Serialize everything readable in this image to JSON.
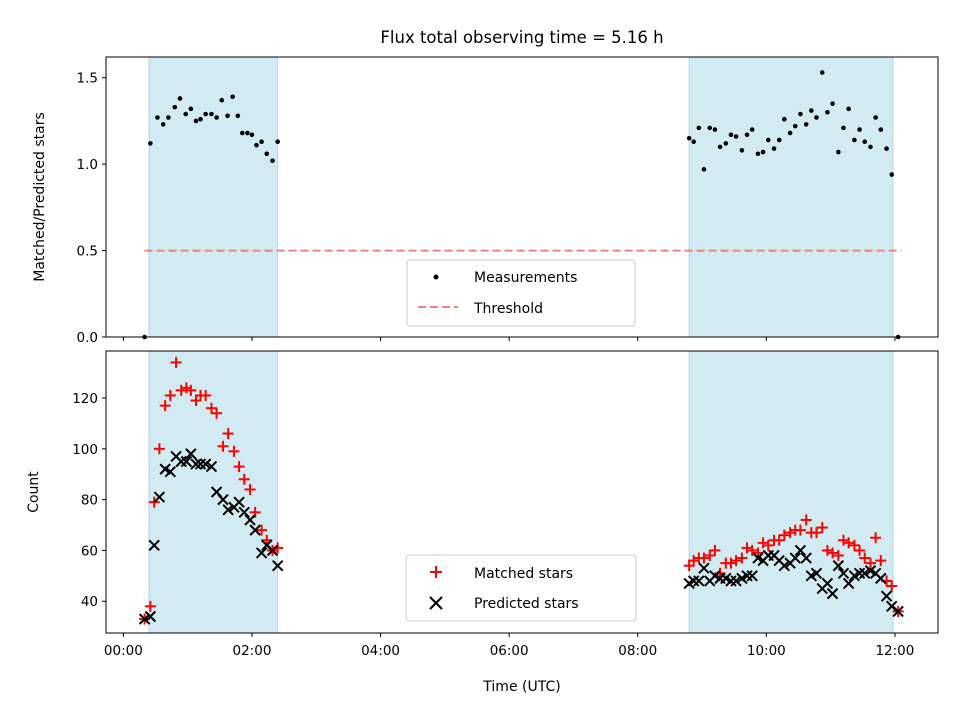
{
  "chart_data": [
    {
      "type": "scatter",
      "title": "Flux total observing time = 5.16 h",
      "xlabel": "",
      "ylabel": "Matched/Predicted stars",
      "xlim_hours": [
        -0.27,
        12.67
      ],
      "ylim": [
        0,
        1.62
      ],
      "yticks": [
        0.0,
        0.5,
        1.0,
        1.5
      ],
      "ytick_labels": [
        "0.0",
        "0.5",
        "1.0",
        "1.5"
      ],
      "shaded_intervals_hours": [
        [
          0.4,
          2.4
        ],
        [
          8.8,
          11.97
        ]
      ],
      "threshold": {
        "name": "Threshold",
        "value": 0.5,
        "x_range_hours": [
          0.33,
          12.1
        ],
        "color": "#f08080"
      },
      "series": [
        {
          "name": "Measurements",
          "marker": "dot",
          "color": "#000000",
          "points": [
            [
              0.33,
              0.0
            ],
            [
              0.42,
              1.12
            ],
            [
              0.53,
              1.27
            ],
            [
              0.62,
              1.23
            ],
            [
              0.7,
              1.27
            ],
            [
              0.8,
              1.33
            ],
            [
              0.88,
              1.38
            ],
            [
              0.97,
              1.29
            ],
            [
              1.05,
              1.32
            ],
            [
              1.13,
              1.25
            ],
            [
              1.2,
              1.26
            ],
            [
              1.28,
              1.29
            ],
            [
              1.37,
              1.29
            ],
            [
              1.45,
              1.27
            ],
            [
              1.53,
              1.37
            ],
            [
              1.62,
              1.28
            ],
            [
              1.7,
              1.39
            ],
            [
              1.78,
              1.28
            ],
            [
              1.85,
              1.18
            ],
            [
              1.93,
              1.18
            ],
            [
              2.0,
              1.17
            ],
            [
              2.07,
              1.11
            ],
            [
              2.15,
              1.13
            ],
            [
              2.23,
              1.06
            ],
            [
              2.32,
              1.02
            ],
            [
              2.4,
              1.13
            ],
            [
              8.8,
              1.15
            ],
            [
              8.87,
              1.13
            ],
            [
              8.95,
              1.21
            ],
            [
              9.03,
              0.97
            ],
            [
              9.12,
              1.21
            ],
            [
              9.2,
              1.2
            ],
            [
              9.28,
              1.1
            ],
            [
              9.37,
              1.12
            ],
            [
              9.45,
              1.17
            ],
            [
              9.53,
              1.16
            ],
            [
              9.62,
              1.08
            ],
            [
              9.7,
              1.17
            ],
            [
              9.78,
              1.2
            ],
            [
              9.87,
              1.06
            ],
            [
              9.95,
              1.07
            ],
            [
              10.03,
              1.14
            ],
            [
              10.12,
              1.09
            ],
            [
              10.2,
              1.14
            ],
            [
              10.28,
              1.26
            ],
            [
              10.37,
              1.18
            ],
            [
              10.45,
              1.22
            ],
            [
              10.53,
              1.29
            ],
            [
              10.62,
              1.23
            ],
            [
              10.7,
              1.31
            ],
            [
              10.78,
              1.27
            ],
            [
              10.87,
              1.53
            ],
            [
              10.95,
              1.3
            ],
            [
              11.03,
              1.35
            ],
            [
              11.12,
              1.07
            ],
            [
              11.2,
              1.21
            ],
            [
              11.28,
              1.32
            ],
            [
              11.37,
              1.14
            ],
            [
              11.45,
              1.2
            ],
            [
              11.53,
              1.13
            ],
            [
              11.62,
              1.1
            ],
            [
              11.7,
              1.27
            ],
            [
              11.78,
              1.2
            ],
            [
              11.87,
              1.09
            ],
            [
              11.95,
              0.94
            ],
            [
              12.05,
              0.0
            ]
          ]
        }
      ],
      "legend": {
        "placement": "lower-center",
        "entries": [
          "Measurements",
          "Threshold"
        ]
      }
    },
    {
      "type": "scatter",
      "title": "",
      "xlabel": "Time (UTC)",
      "ylabel": "Count",
      "xlim_hours": [
        -0.27,
        12.67
      ],
      "ylim": [
        27.5,
        138.5
      ],
      "yticks": [
        40,
        60,
        80,
        100,
        120
      ],
      "ytick_labels": [
        "40",
        "60",
        "80",
        "100",
        "120"
      ],
      "xticks_hours": [
        0,
        2,
        4,
        6,
        8,
        10,
        12
      ],
      "xtick_labels": [
        "00:00",
        "02:00",
        "04:00",
        "06:00",
        "08:00",
        "10:00",
        "12:00"
      ],
      "shaded_intervals_hours": [
        [
          0.4,
          2.4
        ],
        [
          8.8,
          11.97
        ]
      ],
      "series": [
        {
          "name": "Matched stars",
          "marker": "plus",
          "color": "#ff0000",
          "points": [
            [
              0.33,
              33
            ],
            [
              0.42,
              38
            ],
            [
              0.48,
              79
            ],
            [
              0.56,
              100
            ],
            [
              0.65,
              117
            ],
            [
              0.73,
              121
            ],
            [
              0.82,
              134
            ],
            [
              0.9,
              123
            ],
            [
              0.98,
              124
            ],
            [
              1.05,
              123
            ],
            [
              1.13,
              119
            ],
            [
              1.2,
              121
            ],
            [
              1.28,
              121
            ],
            [
              1.37,
              116
            ],
            [
              1.45,
              114
            ],
            [
              1.55,
              101
            ],
            [
              1.63,
              106
            ],
            [
              1.72,
              99
            ],
            [
              1.8,
              93
            ],
            [
              1.88,
              88
            ],
            [
              1.97,
              84
            ],
            [
              2.05,
              75
            ],
            [
              2.15,
              68
            ],
            [
              2.23,
              64
            ],
            [
              2.32,
              60
            ],
            [
              2.4,
              61
            ],
            [
              8.8,
              54
            ],
            [
              8.87,
              56
            ],
            [
              8.95,
              57
            ],
            [
              9.03,
              57
            ],
            [
              9.12,
              58
            ],
            [
              9.2,
              60
            ],
            [
              9.28,
              51
            ],
            [
              9.37,
              55
            ],
            [
              9.45,
              55
            ],
            [
              9.53,
              56
            ],
            [
              9.62,
              57
            ],
            [
              9.7,
              61
            ],
            [
              9.78,
              60
            ],
            [
              9.87,
              59
            ],
            [
              9.95,
              63
            ],
            [
              10.03,
              62
            ],
            [
              10.12,
              64
            ],
            [
              10.2,
              64
            ],
            [
              10.28,
              66
            ],
            [
              10.37,
              67
            ],
            [
              10.45,
              68
            ],
            [
              10.53,
              68
            ],
            [
              10.62,
              72
            ],
            [
              10.7,
              67
            ],
            [
              10.78,
              67
            ],
            [
              10.87,
              69
            ],
            [
              10.95,
              60
            ],
            [
              11.03,
              59
            ],
            [
              11.12,
              58
            ],
            [
              11.2,
              64
            ],
            [
              11.28,
              63
            ],
            [
              11.37,
              62
            ],
            [
              11.45,
              60
            ],
            [
              11.53,
              57
            ],
            [
              11.62,
              55
            ],
            [
              11.7,
              65
            ],
            [
              11.78,
              56
            ],
            [
              11.87,
              48
            ],
            [
              11.95,
              46
            ],
            [
              12.05,
              36
            ]
          ]
        },
        {
          "name": "Predicted stars",
          "marker": "x",
          "color": "#000000",
          "points": [
            [
              0.33,
              33
            ],
            [
              0.42,
              34
            ],
            [
              0.48,
              62
            ],
            [
              0.56,
              81
            ],
            [
              0.65,
              92
            ],
            [
              0.73,
              91
            ],
            [
              0.82,
              97
            ],
            [
              0.9,
              95
            ],
            [
              0.98,
              95
            ],
            [
              1.05,
              98
            ],
            [
              1.13,
              94
            ],
            [
              1.2,
              94
            ],
            [
              1.28,
              94
            ],
            [
              1.37,
              93
            ],
            [
              1.45,
              83
            ],
            [
              1.55,
              80
            ],
            [
              1.63,
              76
            ],
            [
              1.72,
              77
            ],
            [
              1.8,
              79
            ],
            [
              1.88,
              75
            ],
            [
              1.97,
              72
            ],
            [
              2.05,
              68
            ],
            [
              2.15,
              59
            ],
            [
              2.23,
              62
            ],
            [
              2.32,
              60
            ],
            [
              2.4,
              54
            ],
            [
              8.8,
              47
            ],
            [
              8.87,
              48
            ],
            [
              8.95,
              48
            ],
            [
              9.03,
              53
            ],
            [
              9.12,
              48
            ],
            [
              9.2,
              50
            ],
            [
              9.28,
              49
            ],
            [
              9.37,
              49
            ],
            [
              9.45,
              48
            ],
            [
              9.53,
              48
            ],
            [
              9.62,
              49
            ],
            [
              9.7,
              50
            ],
            [
              9.78,
              50
            ],
            [
              9.87,
              57
            ],
            [
              9.95,
              56
            ],
            [
              10.03,
              58
            ],
            [
              10.12,
              58
            ],
            [
              10.2,
              56
            ],
            [
              10.28,
              54
            ],
            [
              10.37,
              55
            ],
            [
              10.45,
              57
            ],
            [
              10.53,
              60
            ],
            [
              10.62,
              57
            ],
            [
              10.7,
              50
            ],
            [
              10.78,
              51
            ],
            [
              10.87,
              45
            ],
            [
              10.95,
              47
            ],
            [
              11.03,
              43
            ],
            [
              11.12,
              54
            ],
            [
              11.2,
              51
            ],
            [
              11.28,
              47
            ],
            [
              11.37,
              50
            ],
            [
              11.45,
              51
            ],
            [
              11.53,
              51
            ],
            [
              11.62,
              52
            ],
            [
              11.7,
              51
            ],
            [
              11.78,
              49
            ],
            [
              11.87,
              42
            ],
            [
              11.95,
              38
            ],
            [
              12.05,
              36
            ]
          ]
        }
      ],
      "legend": {
        "placement": "lower-center",
        "entries": [
          "Matched stars",
          "Predicted stars"
        ]
      }
    }
  ],
  "style": {
    "shade_color": "#add8e6",
    "threshold_color": "#f08080",
    "matched_color": "#ff0000",
    "predicted_color": "#000000"
  }
}
